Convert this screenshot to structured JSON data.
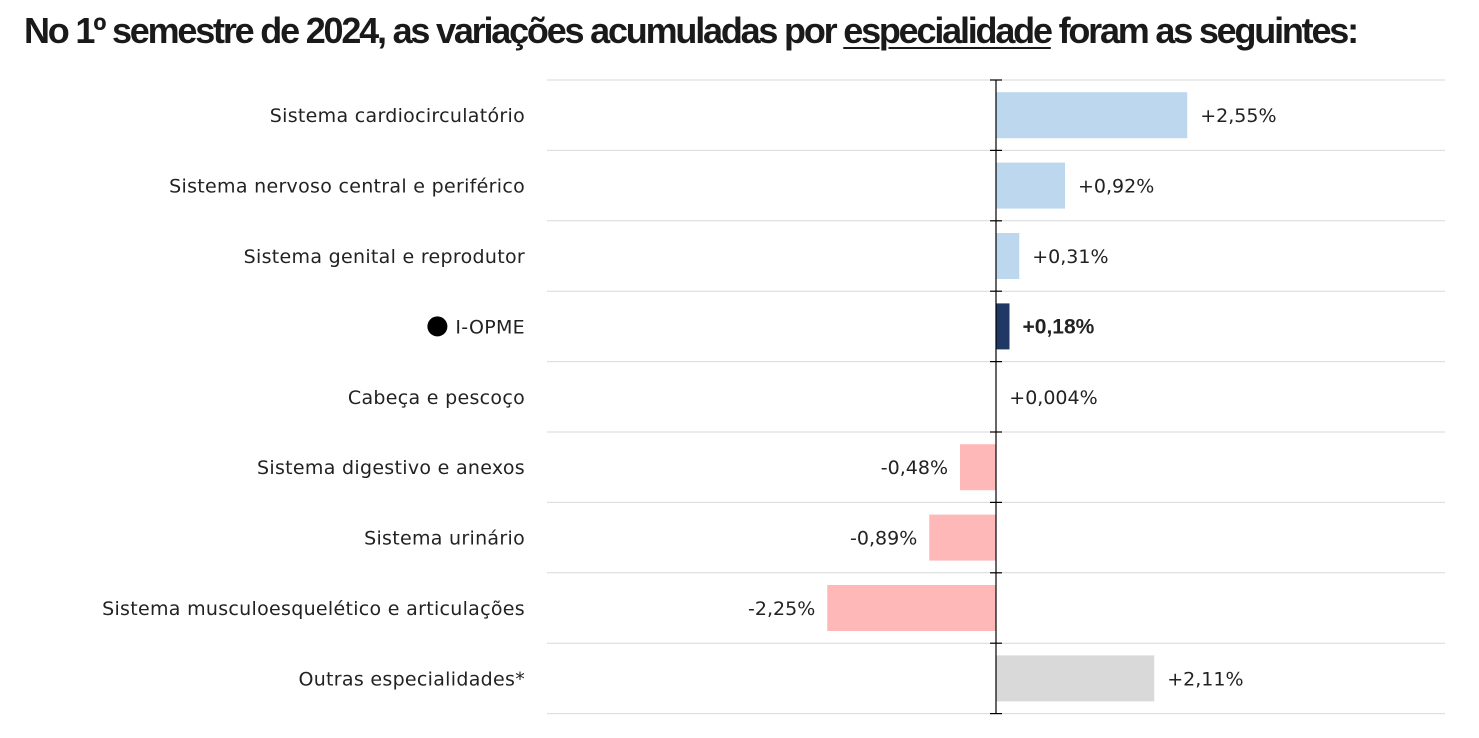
{
  "header": {
    "title_pre": "No 1º semestre de 2024, as variações acumuladas por ",
    "title_underlined": "especialidade",
    "title_post": " foram as seguintes:"
  },
  "colors": {
    "positive": "#bdd7ee",
    "negative": "#ffb8b8",
    "highlight": "#1f3864",
    "other": "#d9d9d9",
    "grid": "#d9d9d9",
    "axis": "#000000"
  },
  "chart_data": {
    "type": "bar",
    "orientation": "horizontal",
    "title": "No 1º semestre de 2024, as variações acumuladas por especialidade foram as seguintes:",
    "xlim": [
      -5.5,
      5.5
    ],
    "categories": [
      "Sistema cardiocirculatório",
      "Sistema nervoso central e periférico",
      "Sistema genital e reprodutor",
      "I-OPME",
      "Cabeça e pescoço",
      "Sistema digestivo e anexos",
      "Sistema urinário",
      "Sistema musculoesquelético e articulações",
      "Outras especialidades*"
    ],
    "values": [
      2.55,
      0.92,
      0.31,
      0.18,
      0.004,
      -0.48,
      -0.89,
      -2.25,
      2.11
    ],
    "labels": [
      "+2,55%",
      "+0,92%",
      "+0,31%",
      "+0,18%",
      "+0,004%",
      "-0,48%",
      "-0,89%",
      "-2,25%",
      "+2,11%"
    ],
    "kinds": [
      "pos",
      "pos",
      "pos",
      "highlight",
      "pos",
      "neg",
      "neg",
      "neg",
      "other"
    ],
    "marker": [
      false,
      false,
      false,
      true,
      false,
      false,
      false,
      false,
      false
    ]
  }
}
